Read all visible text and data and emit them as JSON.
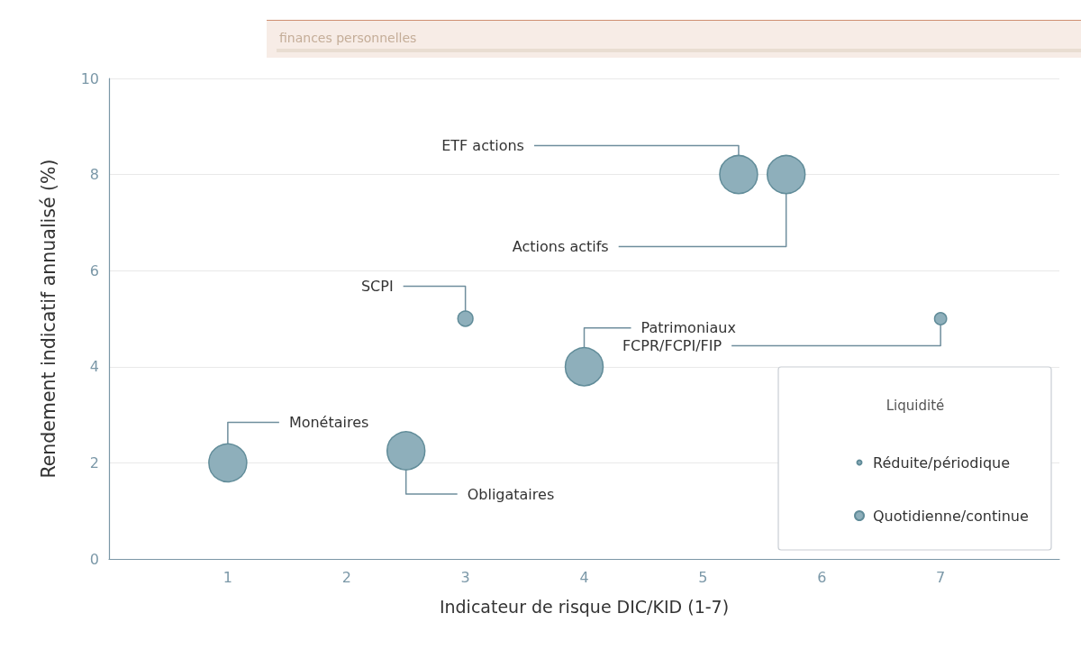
{
  "chart_data": {
    "type": "bubble",
    "subtitle": "finances personnelles",
    "xlabel": "Indicateur de risque DIC/KID (1-7)",
    "ylabel": "Rendement indicatif annualisé (%)",
    "legend_title": "Liquidité",
    "series": [
      {
        "name": "Réduite/périodique",
        "color": "#8eafbb",
        "x": [
          3,
          7
        ],
        "values": [
          5,
          5
        ],
        "sizes": [
          0.16,
          0.1
        ]
      },
      {
        "name": "Quotidienne/continue",
        "color": "#8eafbb",
        "x": [
          1,
          2.5,
          4,
          5.3,
          5.7
        ],
        "values": [
          2,
          2.25,
          4,
          8,
          8
        ],
        "sizes": [
          1,
          1,
          1,
          1,
          1
        ]
      }
    ],
    "xlim": [
      0,
      8
    ],
    "xticks": [
      1,
      2,
      3,
      4,
      5,
      6,
      7
    ],
    "ylim": [
      0,
      10
    ],
    "yticks": [
      0,
      2,
      4,
      6,
      8,
      10
    ],
    "grid": "y",
    "legend": "bottom right",
    "marker": "circle",
    "annotations": [
      {
        "text": "ETF actions",
        "x": 5.3,
        "y": 8
      },
      {
        "text": "Actions actifs",
        "x": 5.7,
        "y": 8
      },
      {
        "text": "SCPI",
        "x": 3,
        "y": 5
      },
      {
        "text": "Patrimoniaux",
        "x": 4,
        "y": 4
      },
      {
        "text": "FCPR/FCPI/FIP",
        "x": 7,
        "y": 5
      },
      {
        "text": "Monétaires",
        "x": 1,
        "y": 2
      },
      {
        "text": "Obligataires",
        "x": 2.5,
        "y": 2.25
      }
    ]
  }
}
